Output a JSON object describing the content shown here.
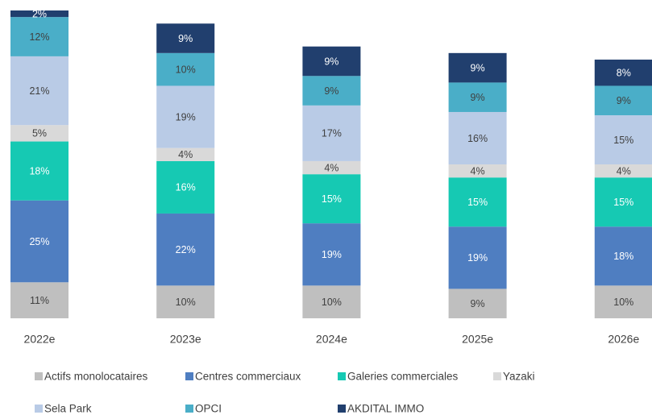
{
  "chart_data": {
    "type": "stacked_bar",
    "categories": [
      "2022e",
      "2023e",
      "2024e",
      "2025e",
      "2026e"
    ],
    "series": [
      {
        "name": "Actifs monolocataires",
        "color": "#bfbfbf",
        "values": [
          11,
          10,
          10,
          9,
          10
        ],
        "value_labels": [
          "11%",
          "10%",
          "10%",
          "9%",
          "10%"
        ]
      },
      {
        "name": "Centres commerciaux",
        "color": "#4f7ec1",
        "values": [
          25,
          22,
          19,
          19,
          18
        ],
        "value_labels": [
          "25%",
          "22%",
          "19%",
          "19%",
          "18%"
        ]
      },
      {
        "name": "Galeries commerciales",
        "color": "#16c9b3",
        "values": [
          18,
          16,
          15,
          15,
          15
        ],
        "value_labels": [
          "18%",
          "16%",
          "15%",
          "15%",
          "15%"
        ]
      },
      {
        "name": "Yazaki",
        "color": "#d9d9d9",
        "values": [
          5,
          4,
          4,
          4,
          4
        ],
        "value_labels": [
          "5%",
          "4%",
          "4%",
          "4%",
          "4%"
        ]
      },
      {
        "name": "Sela Park",
        "color": "#b9cbe6",
        "values": [
          21,
          19,
          17,
          16,
          15
        ],
        "value_labels": [
          "21%",
          "19%",
          "17%",
          "16%",
          "15%"
        ]
      },
      {
        "name": "OPCI",
        "color": "#4aaec8",
        "values": [
          12,
          10,
          9,
          9,
          9
        ],
        "value_labels": [
          "12%",
          "10%",
          "9%",
          "9%",
          "9%"
        ]
      },
      {
        "name": "AKDITAL IMMO",
        "color": "#213f6e",
        "values": [
          2,
          9,
          9,
          9,
          8
        ],
        "value_labels": [
          "2%",
          "9%",
          "9%",
          "9%",
          "8%"
        ]
      }
    ]
  }
}
